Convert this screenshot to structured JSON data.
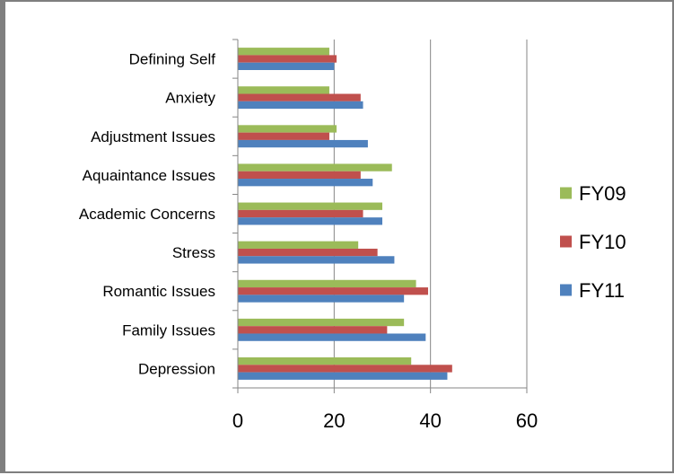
{
  "chart_data": {
    "type": "bar",
    "orientation": "horizontal",
    "categories": [
      "Defining Self",
      "Anxiety",
      "Adjustment Issues",
      "Aquaintance Issues",
      "Academic Concerns",
      "Stress",
      "Romantic Issues",
      "Family Issues",
      "Depression"
    ],
    "series": [
      {
        "name": "FY09",
        "color": "#9bbb59",
        "values": [
          19,
          19,
          20.5,
          32,
          30,
          25,
          37,
          34.5,
          36
        ]
      },
      {
        "name": "FY10",
        "color": "#c0504d",
        "values": [
          20.5,
          25.5,
          19,
          25.5,
          26,
          29,
          39.5,
          31,
          44.5
        ]
      },
      {
        "name": "FY11",
        "color": "#4f81bd",
        "values": [
          20,
          26,
          27,
          28,
          30,
          32.5,
          34.5,
          39,
          43.5
        ]
      }
    ],
    "xlim": [
      0,
      60
    ],
    "xticks": [
      0,
      20,
      40,
      60
    ],
    "xtick_labels": [
      "0",
      "20",
      "40",
      "60"
    ],
    "grid": "vertical",
    "legend_position": "right",
    "legend_order": [
      "FY09",
      "FY10",
      "FY11"
    ],
    "title": "",
    "xlabel": "",
    "ylabel": ""
  }
}
